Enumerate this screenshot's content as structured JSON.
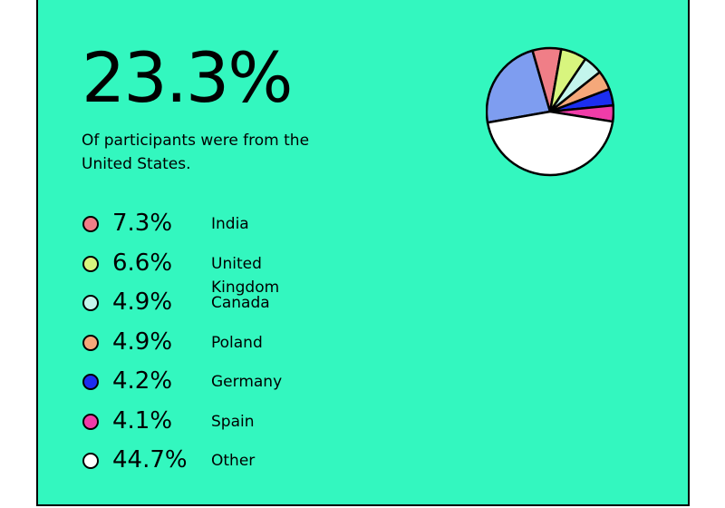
{
  "headline": "23.3%",
  "subtitle": "Of participants were from the United States.",
  "chart_data": {
    "type": "pie",
    "title": "",
    "slices": [
      {
        "label": "United States",
        "value": 23.3,
        "display": "23.3%",
        "color": "#7e9df0"
      },
      {
        "label": "India",
        "value": 7.3,
        "display": "7.3%",
        "color": "#f07e87"
      },
      {
        "label": "United Kingdom",
        "value": 6.6,
        "display": "6.6%",
        "color": "#d8f57e"
      },
      {
        "label": "Canada",
        "value": 4.9,
        "display": "4.9%",
        "color": "#c3f5ec"
      },
      {
        "label": "Poland",
        "value": 4.9,
        "display": "4.9%",
        "color": "#f5a87a"
      },
      {
        "label": "Germany",
        "value": 4.2,
        "display": "4.2%",
        "color": "#1c2ef0"
      },
      {
        "label": "Spain",
        "value": 4.1,
        "display": "4.1%",
        "color": "#f03ca8"
      },
      {
        "label": "Other",
        "value": 44.7,
        "display": "44.7%",
        "color": "#ffffff"
      }
    ]
  }
}
